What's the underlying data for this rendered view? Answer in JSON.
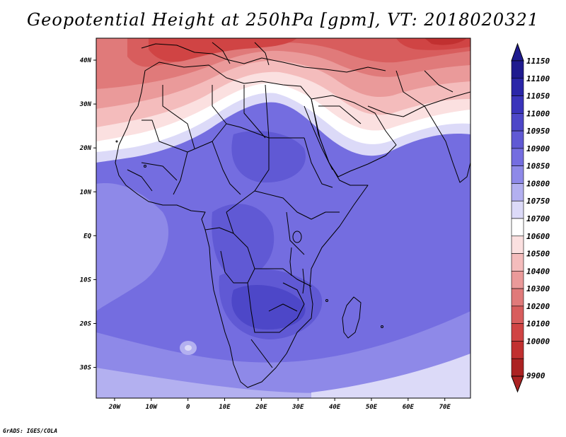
{
  "title": "Geopotential Height at 250hPa [gpm], VT: 2018020321",
  "credit": "GrADS: IGES/COLA",
  "map": {
    "lon_range": [
      -25,
      77
    ],
    "lat_range": [
      -37,
      45
    ],
    "lat_ticks": [
      {
        "label": "40N",
        "lat": 40
      },
      {
        "label": "30N",
        "lat": 30
      },
      {
        "label": "20N",
        "lat": 20
      },
      {
        "label": "10N",
        "lat": 10
      },
      {
        "label": "EQ",
        "lat": 0
      },
      {
        "label": "10S",
        "lat": -10
      },
      {
        "label": "20S",
        "lat": -20
      },
      {
        "label": "30S",
        "lat": -30
      }
    ],
    "lon_ticks": [
      {
        "label": "20W",
        "lon": -20
      },
      {
        "label": "10W",
        "lon": -10
      },
      {
        "label": "0",
        "lon": 0
      },
      {
        "label": "10E",
        "lon": 10
      },
      {
        "label": "20E",
        "lon": 20
      },
      {
        "label": "30E",
        "lon": 30
      },
      {
        "label": "40E",
        "lon": 40
      },
      {
        "label": "50E",
        "lon": 50
      },
      {
        "label": "60E",
        "lon": 60
      },
      {
        "label": "70E",
        "lon": 70
      }
    ]
  },
  "legend": {
    "levels": [
      {
        "label": "11150",
        "color": "#1f1b8f"
      },
      {
        "label": "11100",
        "color": "#2a26a8"
      },
      {
        "label": "11050",
        "color": "#3a34bb"
      },
      {
        "label": "11000",
        "color": "#4d47c8"
      },
      {
        "label": "10950",
        "color": "#6059d4"
      },
      {
        "label": "10900",
        "color": "#746de0"
      },
      {
        "label": "10850",
        "color": "#8e89e8"
      },
      {
        "label": "10800",
        "color": "#b3b0f0"
      },
      {
        "label": "10750",
        "color": "#dcdaf8"
      },
      {
        "label": "10700",
        "color": "#ffffff"
      },
      {
        "label": "10600",
        "color": "#fbe0e0"
      },
      {
        "label": "10500",
        "color": "#f4bcbc"
      },
      {
        "label": "10400",
        "color": "#ea9a9a"
      },
      {
        "label": "10300",
        "color": "#e07a7a"
      },
      {
        "label": "10200",
        "color": "#d85d5d"
      },
      {
        "label": "10100",
        "color": "#d04444"
      },
      {
        "label": "10000",
        "color": "#c13030"
      },
      {
        "label": "9900",
        "color": "#ab2222"
      }
    ]
  }
}
